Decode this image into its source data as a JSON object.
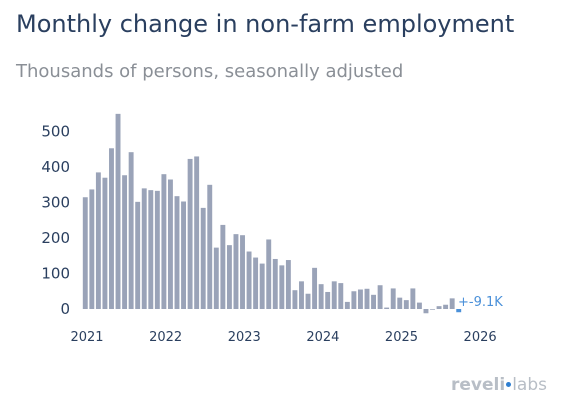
{
  "title": "Monthly change in non-farm employment",
  "subtitle": "Thousands of persons, seasonally adjusted",
  "logo_text": {
    "first": "reveli",
    "second": "labs"
  },
  "chart_data": {
    "type": "bar",
    "x_start": "2021-01",
    "values": [
      315,
      337,
      385,
      370,
      453,
      550,
      377,
      442,
      302,
      340,
      335,
      333,
      380,
      365,
      318,
      303,
      423,
      430,
      285,
      350,
      173,
      237,
      180,
      211,
      208,
      162,
      145,
      128,
      196,
      141,
      123,
      138,
      53,
      78,
      43,
      116,
      70,
      48,
      78,
      73,
      20,
      50,
      55,
      57,
      40,
      67,
      4,
      58,
      32,
      25,
      58,
      18,
      -12,
      -2,
      8,
      12,
      30,
      -9.1
    ],
    "colors": {
      "bar": "#9aa3b8",
      "highlight": "#4a90d9",
      "annotation": "#4a90d9"
    },
    "y_ticks": [
      0,
      100,
      200,
      300,
      400,
      500
    ],
    "y_tick_labels": [
      "0",
      "100",
      "200",
      "300",
      "400",
      "500"
    ],
    "x_ticks": [
      "2021",
      "2022",
      "2023",
      "2024",
      "2025",
      "2026"
    ],
    "annotation": "+-9.1K",
    "grid": false
  }
}
